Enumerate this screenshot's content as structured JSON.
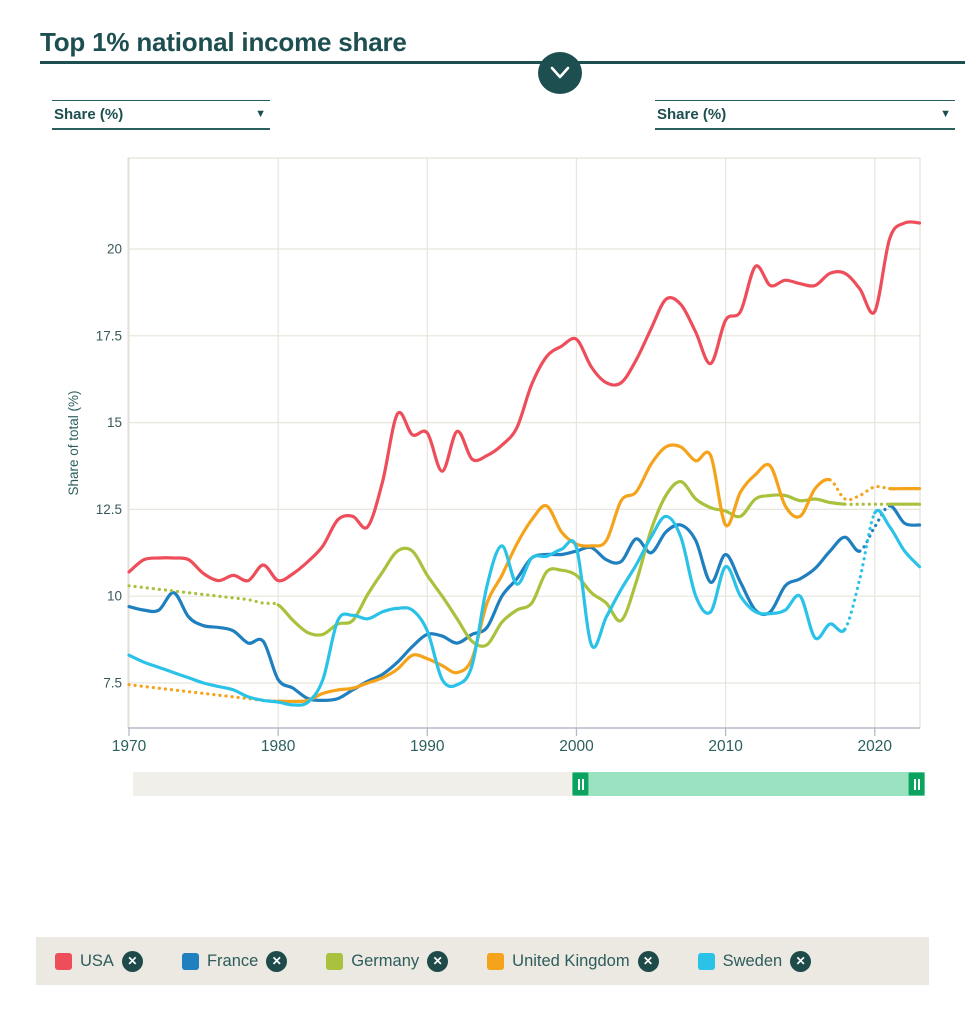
{
  "header": {
    "title": "Top 1% national income share"
  },
  "controls": {
    "left_unit_dropdown": {
      "value": "Share (%)"
    },
    "right_unit_dropdown": {
      "value": "Share (%)"
    }
  },
  "chart_data": {
    "type": "line",
    "title": "Top 1% national income share",
    "xlabel": "",
    "ylabel": "Share of total (%)",
    "x_ticks": [
      1970,
      1980,
      1990,
      2000,
      2010,
      2020
    ],
    "y_ticks": [
      7.5,
      10,
      12.5,
      15,
      17.5,
      20
    ],
    "x_range": [
      1970,
      2023
    ],
    "y_range": [
      6.2,
      22.6
    ],
    "grid": true,
    "legend_position": "bottom",
    "years": [
      1970,
      1971,
      1972,
      1973,
      1974,
      1975,
      1976,
      1977,
      1978,
      1979,
      1980,
      1981,
      1982,
      1983,
      1984,
      1985,
      1986,
      1987,
      1988,
      1989,
      1990,
      1991,
      1992,
      1993,
      1994,
      1995,
      1996,
      1997,
      1998,
      1999,
      2000,
      2001,
      2002,
      2003,
      2004,
      2005,
      2006,
      2007,
      2008,
      2009,
      2010,
      2011,
      2012,
      2013,
      2014,
      2015,
      2016,
      2017,
      2018,
      2019,
      2020,
      2021,
      2022,
      2023
    ],
    "series": [
      {
        "name": "USA",
        "color": "#ee4d5a",
        "dotted_ranges": [],
        "values": [
          10.7,
          11.05,
          11.1,
          11.1,
          11.05,
          10.65,
          10.45,
          10.6,
          10.45,
          10.9,
          10.45,
          10.65,
          11.0,
          11.45,
          12.2,
          12.3,
          12.0,
          13.3,
          15.25,
          14.65,
          14.7,
          13.6,
          14.75,
          13.95,
          14.05,
          14.35,
          14.85,
          16.1,
          16.9,
          17.2,
          17.4,
          16.6,
          16.15,
          16.15,
          16.8,
          17.7,
          18.55,
          18.4,
          17.6,
          16.7,
          17.95,
          18.2,
          19.5,
          18.95,
          19.1,
          19.0,
          18.95,
          19.3,
          19.3,
          18.85,
          18.2,
          20.3,
          20.75,
          20.75
        ]
      },
      {
        "name": "France",
        "color": "#1f7fbf",
        "dotted_ranges": [
          [
            2019,
            2021
          ]
        ],
        "values": [
          9.7,
          9.6,
          9.6,
          10.1,
          9.4,
          9.15,
          9.1,
          9.0,
          8.65,
          8.7,
          7.6,
          7.35,
          7.05,
          7.0,
          7.05,
          7.3,
          7.55,
          7.75,
          8.1,
          8.55,
          8.9,
          8.85,
          8.65,
          8.9,
          9.1,
          10.0,
          10.5,
          11.1,
          11.2,
          11.2,
          11.3,
          11.4,
          11.05,
          11.0,
          11.65,
          11.25,
          11.85,
          12.05,
          11.6,
          10.4,
          11.2,
          10.4,
          9.6,
          9.55,
          10.3,
          10.5,
          10.8,
          11.3,
          11.7,
          11.3,
          12.0,
          12.6,
          12.1,
          12.05
        ]
      },
      {
        "name": "Germany",
        "color": "#a9c23d",
        "dotted_ranges": [
          [
            1970,
            1980
          ],
          [
            2018,
            2021
          ]
        ],
        "values": [
          10.3,
          10.25,
          10.2,
          10.15,
          10.1,
          10.05,
          10.0,
          9.95,
          9.9,
          9.8,
          9.75,
          9.3,
          8.95,
          8.9,
          9.2,
          9.3,
          10.05,
          10.7,
          11.3,
          11.3,
          10.6,
          10.0,
          9.35,
          8.7,
          8.6,
          9.25,
          9.6,
          9.8,
          10.7,
          10.75,
          10.6,
          10.1,
          9.8,
          9.3,
          10.4,
          11.9,
          12.9,
          13.3,
          12.8,
          12.55,
          12.45,
          12.3,
          12.8,
          12.9,
          12.9,
          12.75,
          12.8,
          12.7,
          12.65,
          12.65,
          12.65,
          12.65,
          12.65,
          12.65
        ]
      },
      {
        "name": "United Kingdom",
        "color": "#f5a31b",
        "dotted_ranges": [
          [
            1970,
            1980
          ],
          [
            2017,
            2021
          ]
        ],
        "values": [
          7.45,
          7.4,
          7.35,
          7.3,
          7.25,
          7.2,
          7.15,
          7.1,
          7.05,
          7.0,
          6.98,
          6.97,
          7.0,
          7.2,
          7.3,
          7.35,
          7.5,
          7.65,
          7.9,
          8.3,
          8.2,
          8.0,
          7.8,
          8.2,
          9.8,
          10.6,
          11.5,
          12.2,
          12.6,
          11.85,
          11.5,
          11.45,
          11.6,
          12.75,
          13.0,
          13.8,
          14.3,
          14.3,
          13.9,
          14.05,
          12.05,
          13.0,
          13.5,
          13.75,
          12.6,
          12.3,
          13.1,
          13.35,
          12.8,
          12.9,
          13.15,
          13.1,
          13.1,
          13.1
        ]
      },
      {
        "name": "Sweden",
        "color": "#2bc2e8",
        "dotted_ranges": [
          [
            2018,
            2020
          ]
        ],
        "values": [
          8.3,
          8.1,
          7.95,
          7.8,
          7.65,
          7.5,
          7.4,
          7.3,
          7.1,
          7.0,
          6.95,
          6.87,
          6.95,
          7.6,
          9.3,
          9.45,
          9.35,
          9.55,
          9.65,
          9.6,
          9.0,
          7.6,
          7.45,
          8.0,
          10.3,
          11.45,
          10.35,
          11.1,
          11.15,
          11.35,
          11.4,
          8.6,
          9.4,
          10.2,
          10.9,
          11.7,
          12.3,
          11.7,
          10.0,
          9.55,
          10.85,
          10.0,
          9.55,
          9.5,
          9.6,
          10.0,
          8.8,
          9.2,
          9.05,
          10.5,
          12.4,
          12.0,
          11.3,
          10.85
        ]
      }
    ]
  },
  "timeline": {
    "range_start": 1970,
    "range_end": 2023,
    "selected_start": 2000,
    "selected_end": 2023
  },
  "legend": {
    "remove_glyph": "✕",
    "items": [
      {
        "label": "USA",
        "color": "#ee4d5a"
      },
      {
        "label": "France",
        "color": "#1f7fbf"
      },
      {
        "label": "Germany",
        "color": "#a9c23d"
      },
      {
        "label": "United Kingdom",
        "color": "#f5a31b"
      },
      {
        "label": "Sweden",
        "color": "#2bc2e8"
      }
    ]
  }
}
